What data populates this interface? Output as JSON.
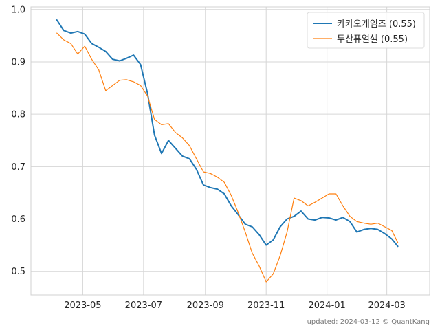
{
  "chart_data": {
    "type": "line",
    "title": "",
    "xlabel": "",
    "ylabel": "",
    "ylim": [
      0.455,
      1.005
    ],
    "xlim": [
      "2023-03-10",
      "2024-04-13"
    ],
    "grid": true,
    "legend_position": "top-right",
    "x_ticks": [
      "2023-05",
      "2023-07",
      "2023-09",
      "2023-11",
      "2024-01",
      "2024-03"
    ],
    "y_ticks": [
      "0.5",
      "0.6",
      "0.7",
      "0.8",
      "0.9",
      "1.0"
    ],
    "x": [
      "2023-04-05",
      "2023-04-12",
      "2023-04-19",
      "2023-04-26",
      "2023-05-03",
      "2023-05-10",
      "2023-05-17",
      "2023-05-24",
      "2023-05-31",
      "2023-06-07",
      "2023-06-14",
      "2023-06-21",
      "2023-06-28",
      "2023-07-05",
      "2023-07-12",
      "2023-07-19",
      "2023-07-26",
      "2023-08-02",
      "2023-08-09",
      "2023-08-16",
      "2023-08-23",
      "2023-08-30",
      "2023-09-06",
      "2023-09-13",
      "2023-09-20",
      "2023-09-27",
      "2023-10-04",
      "2023-10-11",
      "2023-10-18",
      "2023-10-25",
      "2023-11-01",
      "2023-11-08",
      "2023-11-15",
      "2023-11-22",
      "2023-11-29",
      "2023-12-06",
      "2023-12-13",
      "2023-12-20",
      "2023-12-27",
      "2024-01-03",
      "2024-01-10",
      "2024-01-17",
      "2024-01-24",
      "2024-01-31",
      "2024-02-07",
      "2024-02-14",
      "2024-02-21",
      "2024-02-28",
      "2024-03-06",
      "2024-03-12"
    ],
    "series": [
      {
        "name": "카카오게임즈 (0.55)",
        "color": "#1f77b4",
        "values": [
          0.98,
          0.96,
          0.955,
          0.958,
          0.953,
          0.935,
          0.928,
          0.92,
          0.905,
          0.902,
          0.907,
          0.913,
          0.895,
          0.84,
          0.76,
          0.725,
          0.75,
          0.735,
          0.72,
          0.715,
          0.695,
          0.665,
          0.66,
          0.657,
          0.648,
          0.625,
          0.608,
          0.59,
          0.585,
          0.57,
          0.55,
          0.56,
          0.585,
          0.6,
          0.605,
          0.615,
          0.6,
          0.598,
          0.603,
          0.602,
          0.598,
          0.603,
          0.595,
          0.575,
          0.58,
          0.582,
          0.58,
          0.572,
          0.562,
          0.548
        ]
      },
      {
        "name": "두산퓨얼셀 (0.55)",
        "color": "#ff7f0e",
        "values": [
          0.955,
          0.942,
          0.935,
          0.915,
          0.93,
          0.905,
          0.885,
          0.845,
          0.855,
          0.865,
          0.866,
          0.862,
          0.855,
          0.835,
          0.79,
          0.78,
          0.782,
          0.765,
          0.755,
          0.74,
          0.715,
          0.69,
          0.687,
          0.68,
          0.67,
          0.645,
          0.612,
          0.575,
          0.535,
          0.51,
          0.48,
          0.495,
          0.53,
          0.575,
          0.64,
          0.635,
          0.625,
          0.632,
          0.64,
          0.648,
          0.648,
          0.625,
          0.605,
          0.595,
          0.592,
          0.59,
          0.592,
          0.585,
          0.578,
          0.555
        ]
      }
    ]
  },
  "footer": {
    "text": "updated: 2024-03-12 © QuantKang"
  }
}
